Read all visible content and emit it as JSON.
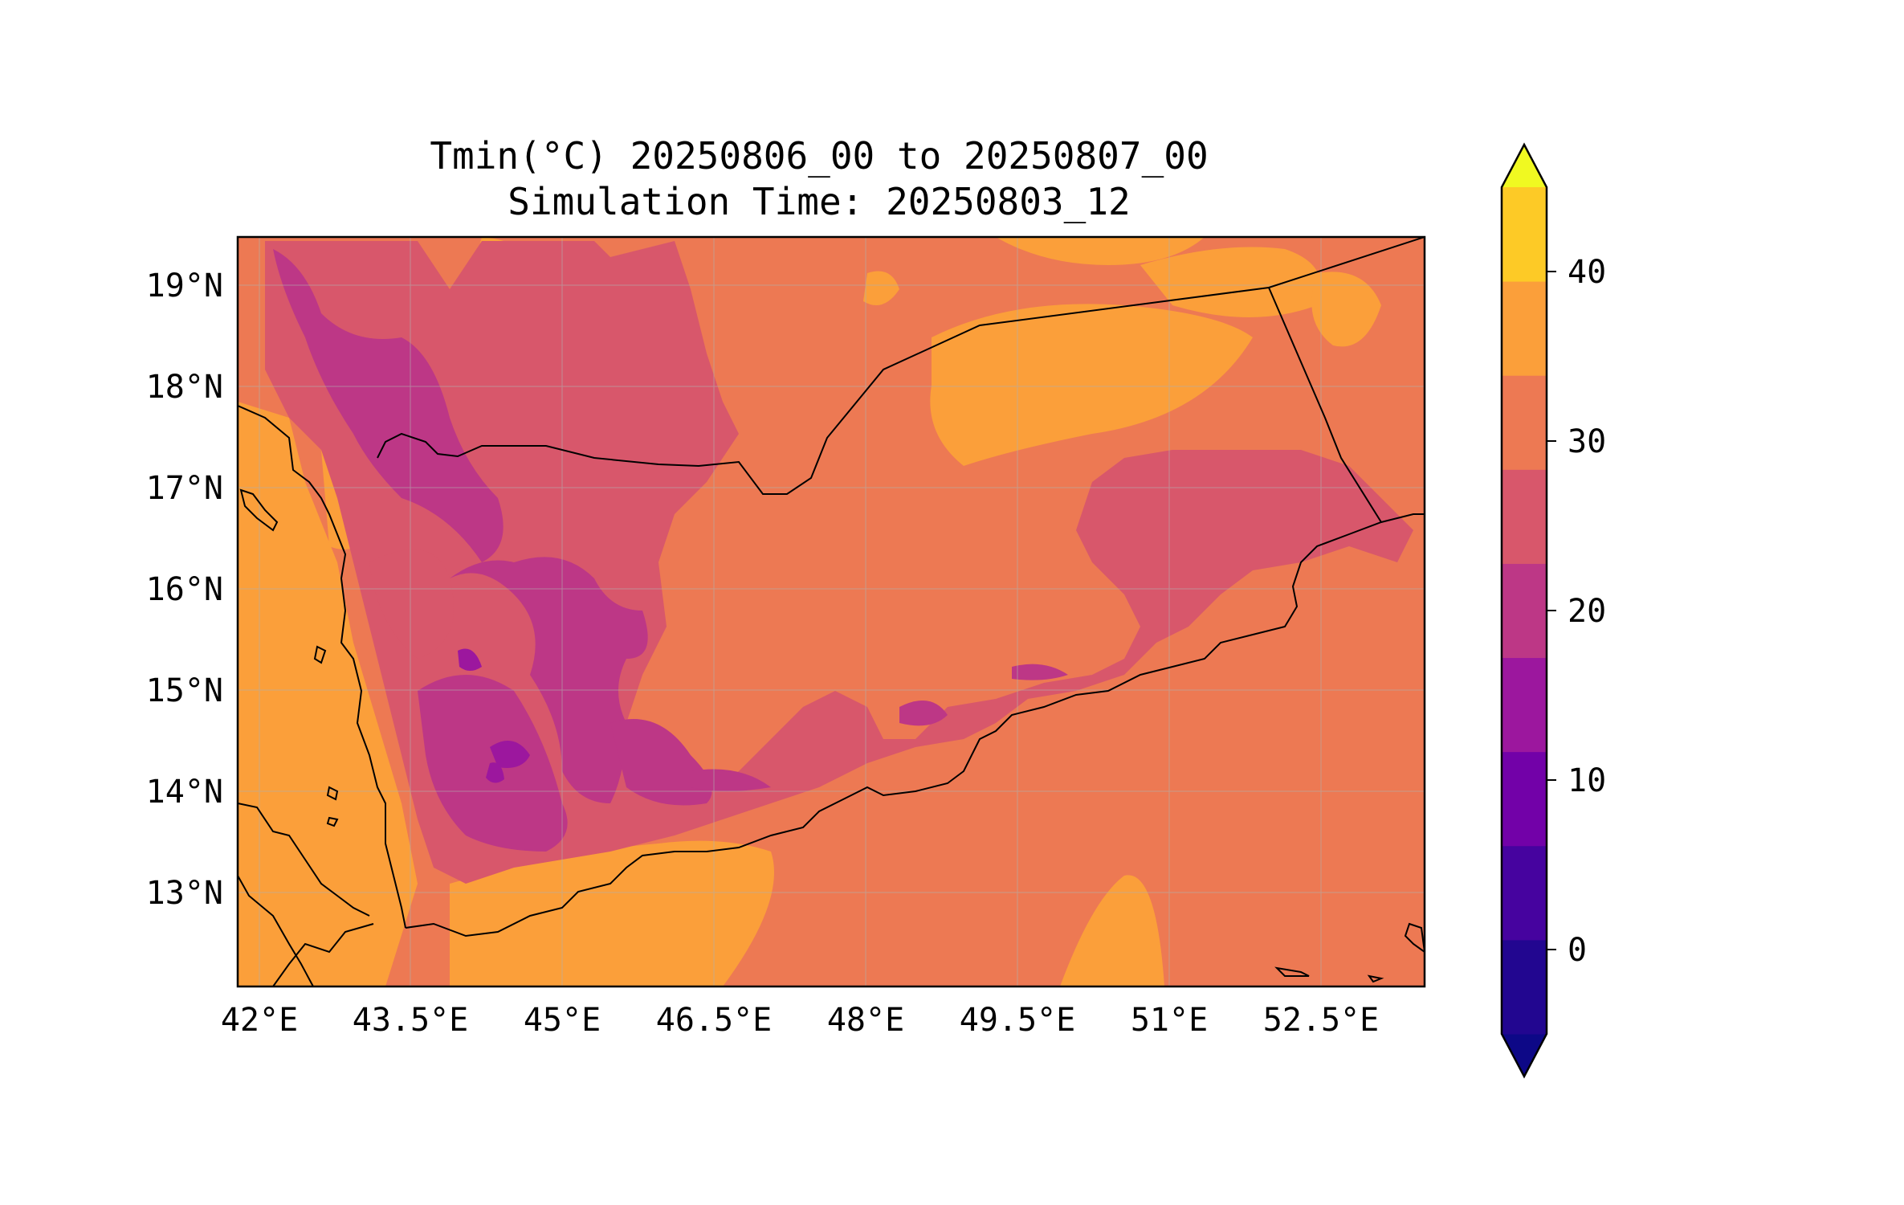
{
  "title": {
    "line1": "Tmin(°C) 20250806_00 to 20250807_00",
    "line2": "Simulation Time: 20250803_12"
  },
  "map": {
    "x_ticks": [
      "42°E",
      "43.5°E",
      "45°E",
      "46.5°E",
      "48°E",
      "49.5°E",
      "51°E",
      "52.5°E"
    ],
    "y_ticks": [
      "19°N",
      "18°N",
      "17°N",
      "16°N",
      "15°N",
      "14°N",
      "13°N"
    ],
    "lon_range": [
      41.9,
      53.8
    ],
    "lat_range": [
      12.1,
      19.5
    ],
    "gridlines": true
  },
  "colorbar": {
    "tick_labels": [
      "0",
      "10",
      "20",
      "30",
      "40"
    ],
    "levels": [
      -5,
      0,
      5,
      10,
      15,
      20,
      25,
      30,
      35,
      40,
      45
    ],
    "extend": "both",
    "colormap": "plasma",
    "colors": [
      "#0d0887",
      "#220690",
      "#46039f",
      "#7201a8",
      "#9c179e",
      "#bd3786",
      "#d8576b",
      "#ed7953",
      "#fb9f3a",
      "#fdca26",
      "#f0f921"
    ]
  }
}
